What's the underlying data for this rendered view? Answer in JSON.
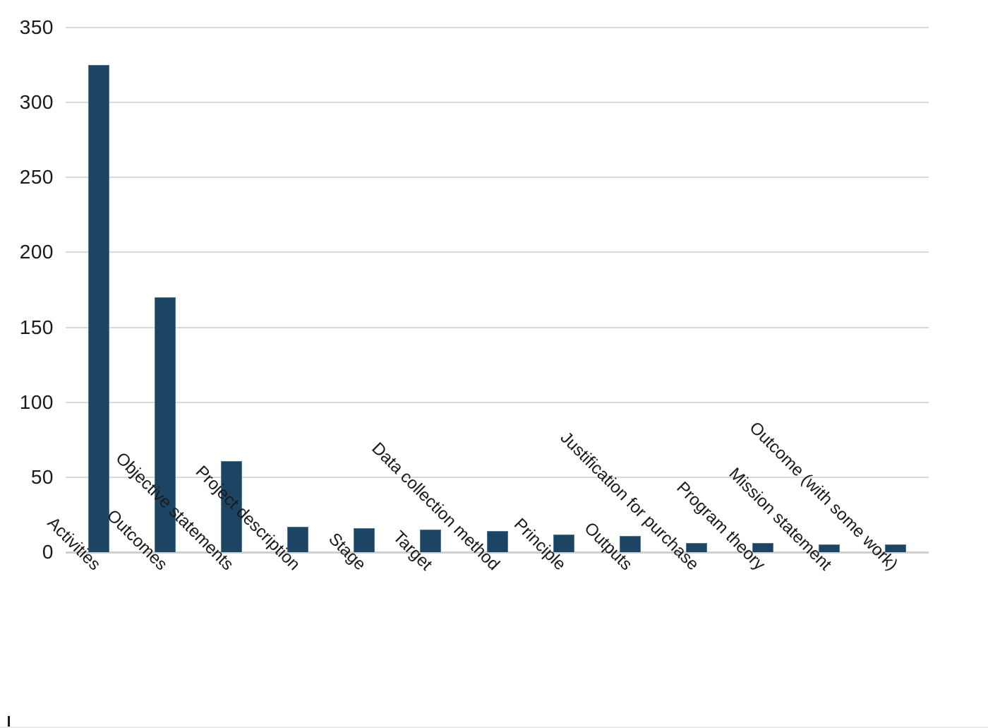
{
  "chart_data": {
    "type": "bar",
    "title": "",
    "categories": [
      "Activities",
      "Outcomes",
      "Objective statements",
      "Project description",
      "Stage",
      "Target",
      "Data collection method",
      "Principle",
      "Outputs",
      "Justification for purchase",
      "Program theory",
      "Mission statement",
      "Outcome (with some work)"
    ],
    "values": [
      325,
      170,
      61,
      17,
      16,
      15,
      14,
      12,
      11,
      6,
      6,
      5,
      5
    ],
    "xlabel": "",
    "ylabel": "",
    "ylim": [
      0,
      350
    ],
    "ytick_interval": 50,
    "ytick_labels": [
      "0",
      "50",
      "100",
      "150",
      "200",
      "250",
      "300",
      "350"
    ],
    "grid": true,
    "legend": "none",
    "x_label_rotation_deg": 45,
    "colors": {
      "bar_fill": "#1B4563",
      "bar_border": "#4D7A9C",
      "gridline": "#D9D9D9",
      "axis_line": "#D0D0D0",
      "tick_label": "#1A1A1A",
      "background": "#FFFFFF"
    }
  }
}
